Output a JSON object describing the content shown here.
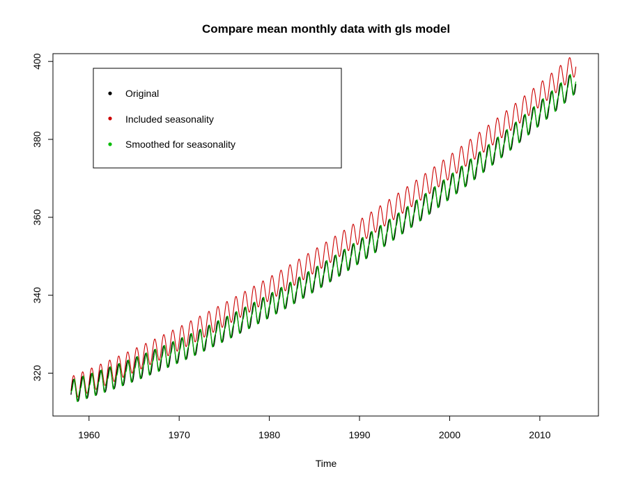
{
  "chart_data": {
    "type": "line",
    "title": "Compare mean monthly data with gls model",
    "xlabel": "Time",
    "ylabel": "",
    "xlim": [
      1956,
      2016.5
    ],
    "ylim": [
      309,
      402
    ],
    "xticks": [
      1960,
      1970,
      1980,
      1990,
      2000,
      2010
    ],
    "yticks": [
      320,
      340,
      360,
      380,
      400
    ],
    "legend_position": "top-left",
    "grid": false,
    "x_start": 1958.0,
    "x_end": 2014.0,
    "x_step": 0.08333,
    "series": [
      {
        "name": "Original",
        "color": "#000000",
        "approx_form": "315.2 + 0.73*(t-1958) + 0.0124*(t-1958)^2 + 3.0*sin(2*pi*(t-1958.04))",
        "key_points": [
          {
            "x": 1958.0,
            "y": 316.0
          },
          {
            "x": 1960.0,
            "y": 317.3
          },
          {
            "x": 1970.0,
            "y": 325.7
          },
          {
            "x": 1980.0,
            "y": 338.6
          },
          {
            "x": 1990.0,
            "y": 354.2
          },
          {
            "x": 2000.0,
            "y": 369.4
          },
          {
            "x": 2010.0,
            "y": 389.0
          },
          {
            "x": 2013.5,
            "y": 396.5
          }
        ]
      },
      {
        "name": "Included seasonality",
        "color": "#cc0000",
        "approx_form": "316.1 + 0.95*(t-1958) + 0.0096*(t-1958)^2 + 3.0*sin(2*pi*(t-1958.04))",
        "key_points": [
          {
            "x": 1958.0,
            "y": 316.1
          },
          {
            "x": 1960.0,
            "y": 318.0
          },
          {
            "x": 1970.0,
            "y": 328.8
          },
          {
            "x": 1980.0,
            "y": 341.6
          },
          {
            "x": 1990.0,
            "y": 356.3
          },
          {
            "x": 2000.0,
            "y": 372.9
          },
          {
            "x": 2010.0,
            "y": 391.4
          },
          {
            "x": 2013.5,
            "y": 398.4
          }
        ]
      },
      {
        "name": "Smoothed for seasonality",
        "color": "#00bb00",
        "approx_form": "315.2 + 0.73*(t-1958) + 0.0124*(t-1958)^2 + 2.5*sin(2*pi*(t-1958.04)) - 1.0*sin(4*pi*(t-1958.04))",
        "key_points": [
          {
            "x": 1958.0,
            "y": 315.4
          },
          {
            "x": 1960.0,
            "y": 316.9
          },
          {
            "x": 1970.0,
            "y": 325.2
          },
          {
            "x": 1980.0,
            "y": 338.0
          },
          {
            "x": 1990.0,
            "y": 353.6
          },
          {
            "x": 2000.0,
            "y": 368.8
          },
          {
            "x": 2010.0,
            "y": 388.5
          },
          {
            "x": 2013.5,
            "y": 396.0
          }
        ]
      }
    ]
  }
}
